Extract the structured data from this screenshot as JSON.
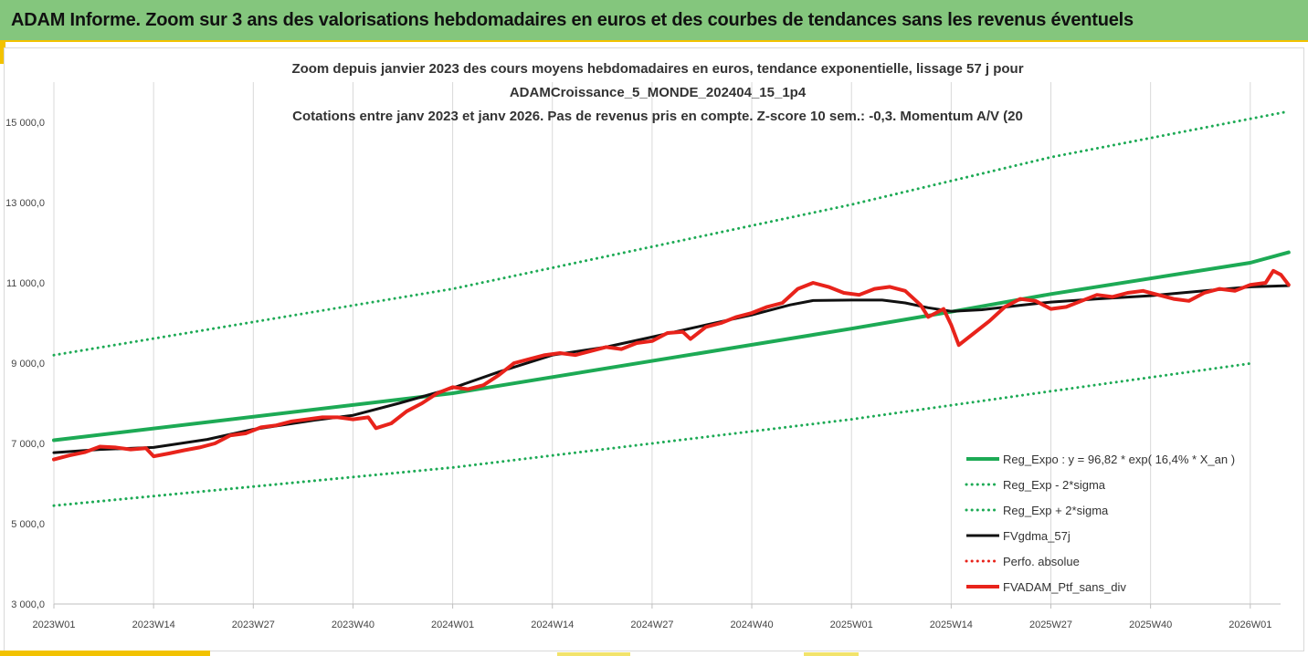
{
  "header": {
    "title": "ADAM Informe. Zoom sur 3 ans des valorisations hebdomadaires en euros et des courbes de tendances sans les revenus éventuels"
  },
  "colors": {
    "header_bg": "#84c67d",
    "accent": "#f2c200",
    "trend_green": "#1daa55",
    "gdma_black": "#111111",
    "perf_red": "#e8231b",
    "grid": "#d9d9d9"
  },
  "chart_data": {
    "type": "line",
    "title_lines": [
      "Zoom depuis janvier 2023 des cours moyens hebdomadaires  en euros, tendance exponentielle, lissage 57 j pour",
      "ADAMCroissance_5_MONDE_202404_15_1p4",
      "Cotations entre janv 2023 et janv 2026. Pas de revenus pris en compte. Z-score 10 sem.: -0,3. Momentum  A/V (20"
    ],
    "x_tick_labels": [
      "2023W01",
      "2023W14",
      "2023W27",
      "2023W40",
      "2024W01",
      "2024W14",
      "2024W27",
      "2024W40",
      "2025W01",
      "2025W14",
      "2025W27",
      "2025W40",
      "2026W01"
    ],
    "x_tick_index": [
      0,
      13,
      26,
      39,
      52,
      65,
      78,
      91,
      104,
      117,
      130,
      143,
      156
    ],
    "x_max_index": 161,
    "ylim": [
      3000,
      16000
    ],
    "y_ticks": [
      3000,
      5000,
      7000,
      9000,
      11000,
      13000,
      15000
    ],
    "y_tick_labels": [
      "3 000,0",
      "5 000,0",
      "7 000,0",
      "9 000,0",
      "11 000,0",
      "13 000,0",
      "15 000,0"
    ],
    "grid": "vertical",
    "legend_position": "bottom-right",
    "legend": [
      {
        "label": "Reg_Expo : y = 96,82 * exp( 16,4% *  X_an )",
        "color": "#1daa55",
        "style": "solid",
        "width": 4
      },
      {
        "label": "Reg_Exp - 2*sigma",
        "color": "#1daa55",
        "style": "dotted",
        "width": 3
      },
      {
        "label": "Reg_Exp + 2*sigma",
        "color": "#1daa55",
        "style": "dotted",
        "width": 3
      },
      {
        "label": "FVgdma_57j",
        "color": "#111111",
        "style": "solid",
        "width": 3
      },
      {
        "label": "Perfo. absolue",
        "color": "#e8231b",
        "style": "dotted",
        "width": 3
      },
      {
        "label": "FVADAM_Ptf_sans_div",
        "color": "#e8231b",
        "style": "solid",
        "width": 4
      }
    ],
    "series": [
      {
        "name": "Reg_Expo : y = 96,82 * exp( 16,4% *  X_an )",
        "style": "solid",
        "color": "#1daa55",
        "points": [
          [
            0,
            7080
          ],
          [
            52,
            8250
          ],
          [
            104,
            9860
          ],
          [
            117,
            10280
          ],
          [
            130,
            10720
          ],
          [
            156,
            11500
          ],
          [
            161,
            11760
          ]
        ]
      },
      {
        "name": "Reg_Exp + 2*sigma",
        "style": "dotted",
        "color": "#1daa55",
        "points": [
          [
            0,
            9200
          ],
          [
            52,
            10850
          ],
          [
            104,
            12950
          ],
          [
            130,
            14130
          ],
          [
            161,
            15270
          ]
        ]
      },
      {
        "name": "Reg_Exp - 2*sigma",
        "style": "dotted",
        "color": "#1daa55",
        "points": [
          [
            0,
            5450
          ],
          [
            52,
            6400
          ],
          [
            104,
            7600
          ],
          [
            130,
            8300
          ],
          [
            156,
            8990
          ]
        ]
      },
      {
        "name": "FVgdma_57j",
        "style": "solid",
        "color": "#111111",
        "points": [
          [
            0,
            6770
          ],
          [
            6,
            6850
          ],
          [
            13,
            6900
          ],
          [
            20,
            7100
          ],
          [
            26,
            7350
          ],
          [
            34,
            7580
          ],
          [
            39,
            7700
          ],
          [
            45,
            8000
          ],
          [
            52,
            8380
          ],
          [
            58,
            8780
          ],
          [
            65,
            9200
          ],
          [
            72,
            9400
          ],
          [
            78,
            9650
          ],
          [
            85,
            9950
          ],
          [
            91,
            10200
          ],
          [
            96,
            10450
          ],
          [
            99,
            10560
          ],
          [
            104,
            10570
          ],
          [
            108,
            10570
          ],
          [
            111,
            10500
          ],
          [
            114,
            10380
          ],
          [
            117,
            10290
          ],
          [
            121,
            10330
          ],
          [
            126,
            10440
          ],
          [
            130,
            10520
          ],
          [
            136,
            10600
          ],
          [
            143,
            10680
          ],
          [
            150,
            10800
          ],
          [
            156,
            10900
          ],
          [
            161,
            10930
          ]
        ]
      },
      {
        "name": "FVADAM_Ptf_sans_div",
        "style": "solid",
        "color": "#e8231b",
        "points": [
          [
            0,
            6600
          ],
          [
            2,
            6700
          ],
          [
            4,
            6780
          ],
          [
            6,
            6920
          ],
          [
            8,
            6900
          ],
          [
            10,
            6850
          ],
          [
            12,
            6880
          ],
          [
            13,
            6680
          ],
          [
            15,
            6750
          ],
          [
            17,
            6830
          ],
          [
            19,
            6900
          ],
          [
            21,
            7000
          ],
          [
            23,
            7200
          ],
          [
            25,
            7250
          ],
          [
            27,
            7400
          ],
          [
            29,
            7450
          ],
          [
            31,
            7550
          ],
          [
            33,
            7600
          ],
          [
            35,
            7650
          ],
          [
            37,
            7650
          ],
          [
            39,
            7600
          ],
          [
            41,
            7650
          ],
          [
            42,
            7380
          ],
          [
            44,
            7500
          ],
          [
            46,
            7800
          ],
          [
            48,
            8000
          ],
          [
            50,
            8250
          ],
          [
            52,
            8400
          ],
          [
            54,
            8350
          ],
          [
            56,
            8450
          ],
          [
            58,
            8700
          ],
          [
            60,
            9000
          ],
          [
            62,
            9100
          ],
          [
            64,
            9200
          ],
          [
            66,
            9250
          ],
          [
            68,
            9200
          ],
          [
            70,
            9300
          ],
          [
            72,
            9400
          ],
          [
            74,
            9350
          ],
          [
            76,
            9500
          ],
          [
            78,
            9550
          ],
          [
            80,
            9750
          ],
          [
            82,
            9780
          ],
          [
            83,
            9600
          ],
          [
            85,
            9900
          ],
          [
            87,
            10000
          ],
          [
            89,
            10150
          ],
          [
            91,
            10250
          ],
          [
            93,
            10400
          ],
          [
            95,
            10500
          ],
          [
            97,
            10850
          ],
          [
            99,
            11000
          ],
          [
            101,
            10900
          ],
          [
            103,
            10750
          ],
          [
            105,
            10700
          ],
          [
            107,
            10850
          ],
          [
            109,
            10900
          ],
          [
            111,
            10800
          ],
          [
            113,
            10450
          ],
          [
            114,
            10150
          ],
          [
            116,
            10350
          ],
          [
            117,
            9950
          ],
          [
            118,
            9450
          ],
          [
            120,
            9750
          ],
          [
            122,
            10050
          ],
          [
            124,
            10400
          ],
          [
            126,
            10600
          ],
          [
            128,
            10550
          ],
          [
            130,
            10350
          ],
          [
            132,
            10400
          ],
          [
            134,
            10550
          ],
          [
            136,
            10700
          ],
          [
            138,
            10650
          ],
          [
            140,
            10750
          ],
          [
            142,
            10800
          ],
          [
            144,
            10700
          ],
          [
            146,
            10600
          ],
          [
            148,
            10550
          ],
          [
            150,
            10750
          ],
          [
            152,
            10850
          ],
          [
            154,
            10800
          ],
          [
            156,
            10950
          ],
          [
            158,
            11000
          ],
          [
            159,
            11300
          ],
          [
            160,
            11200
          ],
          [
            161,
            10950
          ]
        ]
      }
    ]
  }
}
